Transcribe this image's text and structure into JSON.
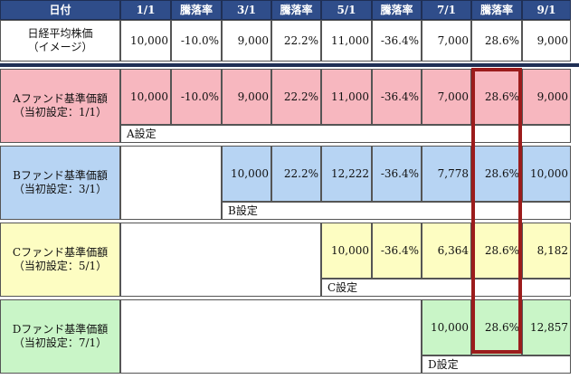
{
  "header": [
    "日付",
    "1/1",
    "騰落率",
    "3/1",
    "騰落率",
    "5/1",
    "騰落率",
    "7/1",
    "騰落率",
    "9/1"
  ],
  "nikkei": {
    "label": [
      "日経平均株価",
      "（イメージ）"
    ],
    "values": [
      "10,000",
      "-10.0%",
      "9,000",
      "22.2%",
      "11,000",
      "-36.4%",
      "7,000",
      "28.6%",
      "9,000"
    ]
  },
  "funds": [
    {
      "label": [
        "Aファンド基準価額",
        "（当初設定：1/1）"
      ],
      "color": "#f7b7bf",
      "start_col": 0,
      "values": [
        "10,000",
        "-10.0%",
        "9,000",
        "22.2%",
        "11,000",
        "-36.4%",
        "7,000",
        "28.6%",
        "9,000"
      ],
      "note": "A設定"
    },
    {
      "label": [
        "Bファンド基準価額",
        "（当初設定：3/1）"
      ],
      "color": "#b7d4f3",
      "start_col": 2,
      "values": [
        "10,000",
        "22.2%",
        "12,222",
        "-36.4%",
        "7,778",
        "28.6%",
        "10,000"
      ],
      "note": "B設定"
    },
    {
      "label": [
        "Cファンド基準価額",
        "（当初設定：5/1）"
      ],
      "color": "#fdfdc2",
      "start_col": 4,
      "values": [
        "10,000",
        "-36.4%",
        "6,364",
        "28.6%",
        "8,182"
      ],
      "note": "C設定"
    },
    {
      "label": [
        "Dファンド基準価額",
        "（当初設定：7/1）"
      ],
      "color": "#c9f5c7",
      "start_col": 6,
      "values": [
        "10,000",
        "28.6%",
        "12,857"
      ],
      "note": "D設定"
    }
  ]
}
